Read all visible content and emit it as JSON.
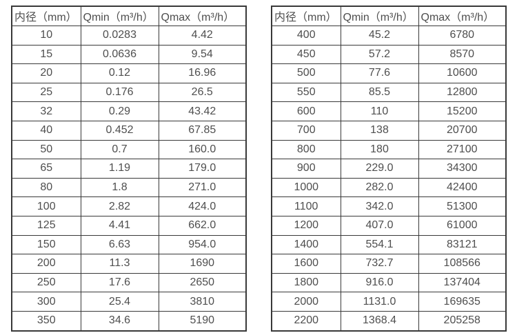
{
  "colors": {
    "background": "#ffffff",
    "border": "#383838",
    "text": "#4e4e4e"
  },
  "tables": [
    {
      "name": "flow-spec-table-small-diameters",
      "headers": [
        "内径（mm）",
        "Qmin（m³/h）",
        "Qmax（m³/h）"
      ],
      "rows": [
        [
          "10",
          "0.0283",
          "4.42"
        ],
        [
          "15",
          "0.0636",
          "9.54"
        ],
        [
          "20",
          "0.12",
          "16.96"
        ],
        [
          "25",
          "0.176",
          "26.5"
        ],
        [
          "32",
          "0.29",
          "43.42"
        ],
        [
          "40",
          "0.452",
          "67.85"
        ],
        [
          "50",
          "0.7",
          "160.0"
        ],
        [
          "65",
          "1.19",
          "179.0"
        ],
        [
          "80",
          "1.8",
          "271.0"
        ],
        [
          "100",
          "2.82",
          "424.0"
        ],
        [
          "125",
          "4.41",
          "662.0"
        ],
        [
          "150",
          "6.63",
          "954.0"
        ],
        [
          "200",
          "11.3",
          "1690"
        ],
        [
          "250",
          "17.6",
          "2650"
        ],
        [
          "300",
          "25.4",
          "3810"
        ],
        [
          "350",
          "34.6",
          "5190"
        ]
      ]
    },
    {
      "name": "flow-spec-table-large-diameters",
      "headers": [
        "内径（mm）",
        "Qmin（m³/h）",
        "Qmax（m³/h）"
      ],
      "rows": [
        [
          "400",
          "45.2",
          "6780"
        ],
        [
          "450",
          "57.2",
          "8570"
        ],
        [
          "500",
          "77.6",
          "10600"
        ],
        [
          "550",
          "85.5",
          "12800"
        ],
        [
          "600",
          "110",
          "15200"
        ],
        [
          "700",
          "138",
          "20700"
        ],
        [
          "800",
          "180",
          "27100"
        ],
        [
          "900",
          "229.0",
          "34300"
        ],
        [
          "1000",
          "282.0",
          "42400"
        ],
        [
          "1100",
          "342.0",
          "51300"
        ],
        [
          "1200",
          "407.0",
          "61000"
        ],
        [
          "1400",
          "554.1",
          "83121"
        ],
        [
          "1600",
          "732.7",
          "108566"
        ],
        [
          "1800",
          "916.0",
          "137404"
        ],
        [
          "2000",
          "1131.0",
          "169635"
        ],
        [
          "2200",
          "1368.4",
          "205258"
        ]
      ]
    }
  ]
}
